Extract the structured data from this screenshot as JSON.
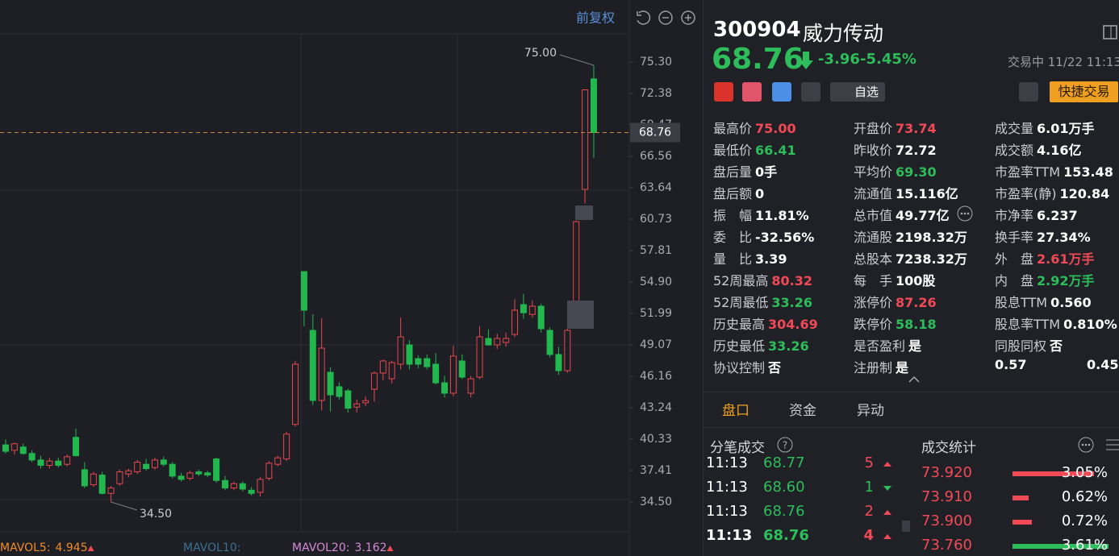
{
  "chart_data": {
    "type": "candlestick",
    "button": "前复权",
    "up_color": "#e8474f",
    "down_color": "#22b84f",
    "candles": [
      [
        39.8,
        40.3,
        39.0,
        39.2
      ],
      [
        39.3,
        40.0,
        38.9,
        39.9
      ],
      [
        39.6,
        39.9,
        38.9,
        39.0
      ],
      [
        39.0,
        39.3,
        38.2,
        38.4
      ],
      [
        38.4,
        38.8,
        37.6,
        37.9
      ],
      [
        37.9,
        38.6,
        37.6,
        38.3
      ],
      [
        38.3,
        38.6,
        37.7,
        37.9
      ],
      [
        38.0,
        38.9,
        37.8,
        38.7
      ],
      [
        40.5,
        41.3,
        38.7,
        38.8
      ],
      [
        37.5,
        38.2,
        35.8,
        36.0
      ],
      [
        36.1,
        37.3,
        35.9,
        37.1
      ],
      [
        37.0,
        37.3,
        35.2,
        35.3
      ],
      [
        35.3,
        36.0,
        34.5,
        35.8
      ],
      [
        36.2,
        37.5,
        36.0,
        37.3
      ],
      [
        37.1,
        37.6,
        36.8,
        37.4
      ],
      [
        37.3,
        38.4,
        37.1,
        38.2
      ],
      [
        38.0,
        38.5,
        37.4,
        37.6
      ],
      [
        37.7,
        38.6,
        37.5,
        38.4
      ],
      [
        38.4,
        38.7,
        37.8,
        38.0
      ],
      [
        38.0,
        38.2,
        36.7,
        36.9
      ],
      [
        36.9,
        37.2,
        36.4,
        36.6
      ],
      [
        36.7,
        37.4,
        36.5,
        37.2
      ],
      [
        37.3,
        37.5,
        36.9,
        37.1
      ],
      [
        37.2,
        37.4,
        36.8,
        37.0
      ],
      [
        38.5,
        38.6,
        36.3,
        36.5
      ],
      [
        36.5,
        36.9,
        35.6,
        35.8
      ],
      [
        35.8,
        36.4,
        35.6,
        36.2
      ],
      [
        36.2,
        36.4,
        35.5,
        35.7
      ],
      [
        35.6,
        35.9,
        35.1,
        35.3
      ],
      [
        35.4,
        36.8,
        35.0,
        36.6
      ],
      [
        36.7,
        38.3,
        36.5,
        38.1
      ],
      [
        38.0,
        38.8,
        37.8,
        38.6
      ],
      [
        38.5,
        41.0,
        38.3,
        40.8
      ],
      [
        41.7,
        47.6,
        41.5,
        47.28
      ],
      [
        55.87,
        55.9,
        50.8,
        52.29
      ],
      [
        50.42,
        51.91,
        43.5,
        43.92
      ],
      [
        43.92,
        51.54,
        43.0,
        48.77
      ],
      [
        46.53,
        47.0,
        42.9,
        44.44
      ],
      [
        45.19,
        45.6,
        44.0,
        44.29
      ],
      [
        44.81,
        45.0,
        42.8,
        43.2
      ],
      [
        43.3,
        44.0,
        42.8,
        43.6
      ],
      [
        43.7,
        44.3,
        43.4,
        43.9
      ],
      [
        44.96,
        46.6,
        43.8,
        46.46
      ],
      [
        46.46,
        47.7,
        45.8,
        47.58
      ],
      [
        45.93,
        47.6,
        45.5,
        47.43
      ],
      [
        47.28,
        51.6,
        46.8,
        49.82
      ],
      [
        49.07,
        49.5,
        46.8,
        47.28
      ],
      [
        47.8,
        48.1,
        46.9,
        47.28
      ],
      [
        47.8,
        48.2,
        46.8,
        47.05
      ],
      [
        47.28,
        48.3,
        45.4,
        45.56
      ],
      [
        45.56,
        46.2,
        44.2,
        44.59
      ],
      [
        44.59,
        49.0,
        44.3,
        48.03
      ],
      [
        47.58,
        48.2,
        45.9,
        46.08
      ],
      [
        44.59,
        46.2,
        44.2,
        45.93
      ],
      [
        46.08,
        50.8,
        45.9,
        49.82
      ],
      [
        49.67,
        50.5,
        49.0,
        49.07
      ],
      [
        49.07,
        50.1,
        48.7,
        49.67
      ],
      [
        49.3,
        50.2,
        48.9,
        49.67
      ],
      [
        50.04,
        53.3,
        49.8,
        52.29
      ],
      [
        52.81,
        53.8,
        51.5,
        52.05
      ],
      [
        51.9,
        53.2,
        51.6,
        52.66
      ],
      [
        52.66,
        52.9,
        50.2,
        50.57
      ],
      [
        50.42,
        50.7,
        47.9,
        48.18
      ],
      [
        48.18,
        48.9,
        46.3,
        46.68
      ],
      [
        46.68,
        50.6,
        46.5,
        50.42
      ],
      [
        51.39,
        60.6,
        51.2,
        60.5
      ],
      [
        63.5,
        72.72,
        62.2,
        72.72
      ],
      [
        73.74,
        75.0,
        66.41,
        68.76
      ]
    ],
    "ylim": [
      32.11,
      80.68
    ],
    "yticks": [
      {
        "value": 75.3,
        "label": "75.30"
      },
      72.38,
      69.47,
      66.56,
      63.64,
      60.73,
      57.81,
      {
        "value": 54.9,
        "label": "54.90"
      },
      51.99,
      49.07,
      46.16,
      43.24,
      40.33,
      37.41,
      {
        "value": 34.5,
        "label": "34.50"
      }
    ],
    "last_price": 68.76,
    "high_label": {
      "value": 75,
      "label": "75.00"
    },
    "low_label": {
      "value": 34.5,
      "label": "34.50"
    },
    "indicators": [
      {
        "name": "MAVOL5:",
        "value": 4.945,
        "color": "#f08c2a"
      },
      {
        "name": "MAVOL10:",
        "color": "#3f6f92"
      },
      {
        "name": "MAVOL20:",
        "value": 3.162,
        "color": "#d68ad6"
      }
    ]
  },
  "quote": {
    "code": "300904",
    "name": "威力传动",
    "price": "68.76",
    "change": "-3.96",
    "change_pct": "-5.45%",
    "status": "交易中 11/22 11:13",
    "watch": "自选",
    "trade": "快捷交易",
    "stats": [
      [
        {
          "label": "最高价",
          "value": "75.00",
          "color": "#f24957"
        },
        {
          "label": "最低价",
          "value": "66.41",
          "color": "#2dbd5a"
        },
        {
          "label": "盘后量",
          "value": "0手"
        },
        {
          "label": "盘后额",
          "value": "0"
        },
        {
          "label": "振　幅",
          "value": "11.81%"
        },
        {
          "label": "委　比",
          "value": "-32.56%"
        },
        {
          "label": "量　比",
          "value": "3.39"
        },
        {
          "label": "52周最高",
          "value": "80.32",
          "color": "#f24957"
        },
        {
          "label": "52周最低",
          "value": "33.26",
          "color": "#2dbd5a"
        },
        {
          "label": "历史最高",
          "value": "304.69",
          "color": "#f24957"
        },
        {
          "label": "历史最低",
          "value": "33.26",
          "color": "#2dbd5a"
        },
        {
          "label": "协议控制",
          "value": "否"
        }
      ],
      [
        {
          "label": "开盘价",
          "value": "73.74",
          "color": "#f24957"
        },
        {
          "label": "昨收价",
          "value": "72.72"
        },
        {
          "label": "平均价",
          "value": "69.30",
          "color": "#2dbd5a"
        },
        {
          "label": "流通值",
          "value": "15.116亿"
        },
        {
          "label": "总市值",
          "value": "49.77亿"
        },
        {
          "label": "流通股",
          "value": "2198.32万"
        },
        {
          "label": "总股本",
          "value": "7238.32万"
        },
        {
          "label": "每　手",
          "value": "100股"
        },
        {
          "label": "涨停价",
          "value": "87.26",
          "color": "#f24957"
        },
        {
          "label": "跌停价",
          "value": "58.18",
          "color": "#2dbd5a"
        },
        {
          "label": "是否盈利",
          "value": "是"
        },
        {
          "label": "注册制",
          "value": "是"
        }
      ],
      [
        {
          "label": "成交量",
          "value": "6.01万手"
        },
        {
          "label": "成交额",
          "value": "4.16亿"
        },
        {
          "label": "市盈率TTM",
          "value": "153.48"
        },
        {
          "label": "市盈率(静)",
          "value": "120.84"
        },
        {
          "label": "市净率",
          "value": "6.237"
        },
        {
          "label": "换手率",
          "value": "27.34%"
        },
        {
          "label": "外　盘",
          "value": "2.61万手",
          "color": "#f24957"
        },
        {
          "label": "内　盘",
          "value": "2.92万手",
          "color": "#2dbd5a"
        },
        {
          "label": "股息TTM",
          "value": "0.560"
        },
        {
          "label": "股息率TTM",
          "value": "0.810%"
        },
        {
          "label": "同股同权",
          "value": "否"
        }
      ]
    ],
    "ratio": [
      "0.57",
      "0.45"
    ],
    "tabs": [
      "盘口",
      "资金",
      "异动"
    ],
    "ticks_title": "分笔成交",
    "summary_title": "成交统计",
    "ticks": [
      {
        "time": "11:13",
        "price": "68.77",
        "volume": "5",
        "arrow_color": "#f24957"
      },
      {
        "time": "11:13",
        "price": "68.60",
        "volume": "1",
        "arrow_color": "#2dbd5a"
      },
      {
        "time": "11:13",
        "price": "68.76",
        "volume": "2",
        "arrow_color": "#f24957"
      },
      {
        "time": "11:13",
        "price": "68.76",
        "volume": "4",
        "arrow_color": "#f24957"
      }
    ],
    "summary": [
      {
        "price": "73.920",
        "share": 3.05,
        "share_label": "3.05%",
        "color": "#f24957"
      },
      {
        "price": "73.910",
        "share": 0.62,
        "share_label": "0.62%",
        "color": "#f24957"
      },
      {
        "price": "73.900",
        "share": 0.72,
        "share_label": "0.72%",
        "color": "#f24957"
      },
      {
        "price": "73.760",
        "share": 3.61,
        "share_label": "3.61%",
        "color": "#2dbd5a"
      }
    ]
  }
}
